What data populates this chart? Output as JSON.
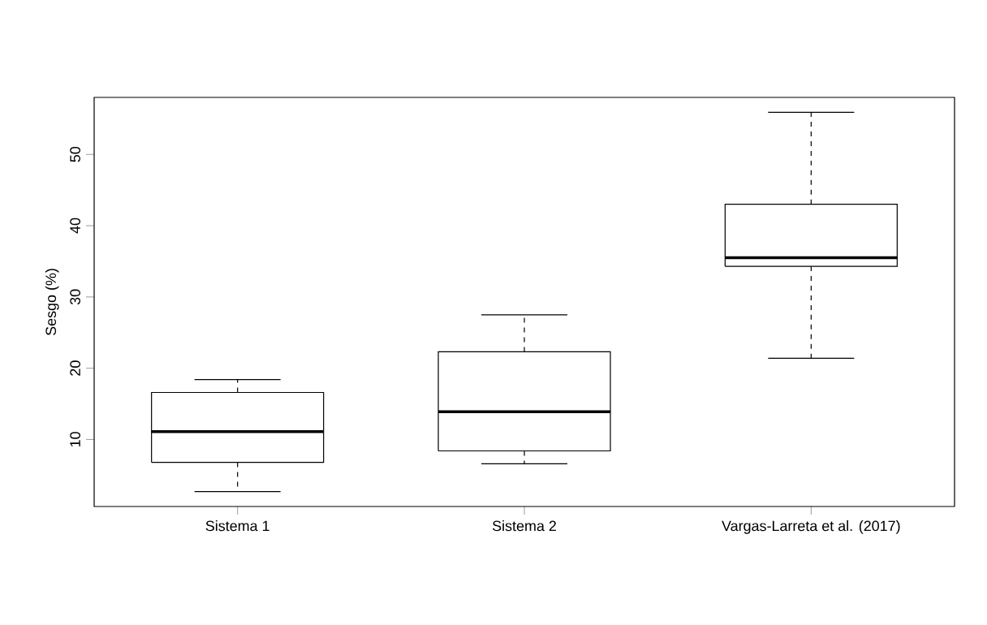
{
  "chart_data": {
    "type": "box",
    "ylabel": "Sesgo (%)",
    "categories": [
      "Sistema 1",
      "Sistema 2",
      "Vargas-Larreta et al. (2017)"
    ],
    "boxes": [
      {
        "low": 2.7,
        "q1": 6.8,
        "median": 11.1,
        "q3": 16.6,
        "high": 18.4
      },
      {
        "low": 6.6,
        "q1": 8.4,
        "median": 13.9,
        "q3": 22.3,
        "high": 27.5
      },
      {
        "low": 21.4,
        "q1": 34.3,
        "median": 35.5,
        "q3": 43.0,
        "high": 55.9
      }
    ],
    "ylim": [
      0.6,
      58
    ],
    "yticks": [
      10,
      20,
      30,
      40,
      50
    ]
  }
}
